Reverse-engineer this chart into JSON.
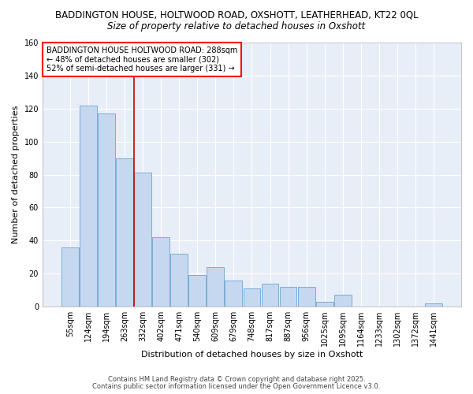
{
  "title_line1": "BADDINGTON HOUSE, HOLTWOOD ROAD, OXSHOTT, LEATHERHEAD, KT22 0QL",
  "title_line2": "Size of property relative to detached houses in Oxshott",
  "xlabel": "Distribution of detached houses by size in Oxshott",
  "ylabel": "Number of detached properties",
  "categories": [
    "55sqm",
    "124sqm",
    "194sqm",
    "263sqm",
    "332sqm",
    "402sqm",
    "471sqm",
    "540sqm",
    "609sqm",
    "679sqm",
    "748sqm",
    "817sqm",
    "887sqm",
    "956sqm",
    "1025sqm",
    "1095sqm",
    "1164sqm",
    "1233sqm",
    "1302sqm",
    "1372sqm",
    "1441sqm"
  ],
  "values": [
    36,
    122,
    117,
    90,
    81,
    42,
    32,
    19,
    24,
    16,
    11,
    14,
    12,
    12,
    3,
    7,
    0,
    0,
    0,
    0,
    2
  ],
  "bar_color": "#c5d8f0",
  "bar_edge_color": "#7aadd4",
  "vline_x_index": 3.5,
  "vline_color": "#cc0000",
  "ylim": [
    0,
    160
  ],
  "yticks": [
    0,
    20,
    40,
    60,
    80,
    100,
    120,
    140,
    160
  ],
  "annotation_box_text": "BADDINGTON HOUSE HOLTWOOD ROAD: 288sqm\n← 48% of detached houses are smaller (302)\n52% of semi-detached houses are larger (331) →",
  "footer_line1": "Contains HM Land Registry data © Crown copyright and database right 2025.",
  "footer_line2": "Contains public sector information licensed under the Open Government Licence v3.0.",
  "background_color": "#ffffff",
  "plot_bg_color": "#e8eef8",
  "grid_color": "#ffffff"
}
